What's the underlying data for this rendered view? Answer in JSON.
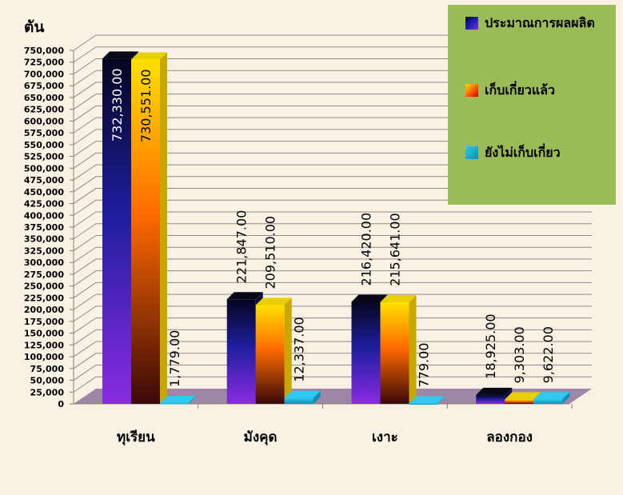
{
  "chart_data": {
    "type": "bar",
    "unit_label": "ตัน",
    "categories": [
      "ทุเรียน",
      "มังคุด",
      "เงาะ",
      "ลองกอง"
    ],
    "series": [
      {
        "name": "ประมาณการผลผลิต",
        "values": [
          732330,
          221847,
          216420,
          18925
        ],
        "labels": [
          "732,330.00",
          "221,847.00",
          "216,420.00",
          "18,925.00"
        ],
        "color": "#1c1c9a"
      },
      {
        "name": "เก็บเกี่ยวแล้ว",
        "values": [
          730551,
          209510,
          215641,
          9303
        ],
        "labels": [
          "730,551.00",
          "209,510.00",
          "215,641.00",
          "9,303.00"
        ],
        "color": "#f5b000"
      },
      {
        "name": "ยังไม่เก็บเกี่ยว",
        "values": [
          1779,
          12337,
          779,
          9622
        ],
        "labels": [
          "1,779.00",
          "12,337.00",
          "779.00",
          "9,622.00"
        ],
        "color": "#1ab5d6"
      }
    ],
    "y_ticks": [
      "0",
      "25,000",
      "50,000",
      "75,000",
      "100,000",
      "125,000",
      "150,000",
      "175,000",
      "200,000",
      "225,000",
      "250,000",
      "275,000",
      "300,000",
      "325,000",
      "350,000",
      "375,000",
      "400,000",
      "425,000",
      "450,000",
      "475,000",
      "500,000",
      "525,000",
      "550,000",
      "575,000",
      "600,000",
      "625,000",
      "650,000",
      "675,000",
      "700,000",
      "725,000",
      "750,000"
    ],
    "ylim": [
      0,
      750000
    ],
    "grid": true,
    "legend_position": "top-right"
  },
  "legend": {
    "item1": "ประมาณการผลผลิต",
    "item2": "เก็บเกี่ยวแล้ว",
    "item3": "ยังไม่เก็บเกี่ยว"
  }
}
